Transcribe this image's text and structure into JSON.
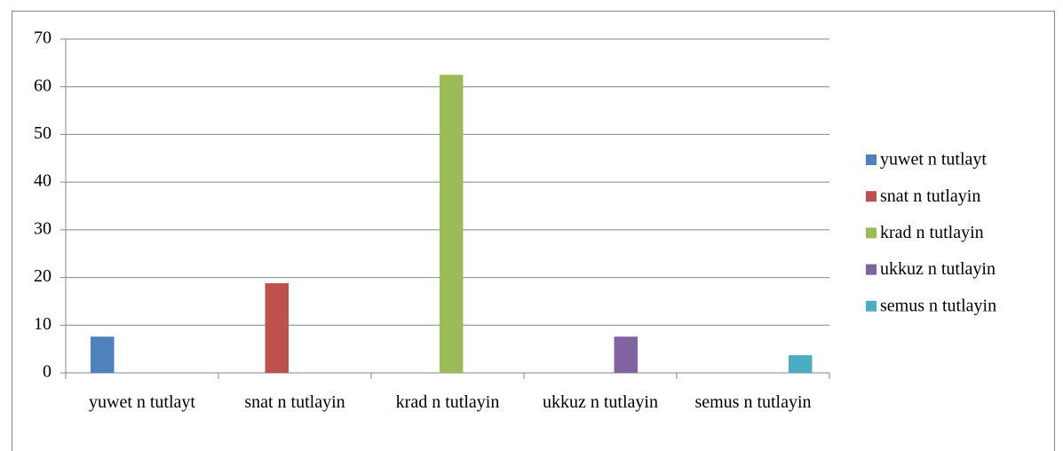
{
  "chart_data": {
    "type": "bar",
    "categories": [
      "yuwet n tutlayt",
      "snat n tutlayin",
      "krad n tutlayin",
      "ukkuz n tutlayin",
      "semus n tutlayin"
    ],
    "series": [
      {
        "name": "yuwet n tutlayt",
        "color": "#4f81bd",
        "values": [
          7.6,
          null,
          null,
          null,
          null
        ]
      },
      {
        "name": "snat n tutlayin",
        "color": "#c0504d",
        "values": [
          null,
          18.8,
          null,
          null,
          null
        ]
      },
      {
        "name": "krad n tutlayin",
        "color": "#9bbb59",
        "values": [
          null,
          null,
          62.5,
          null,
          null
        ]
      },
      {
        "name": "ukkuz n tutlayin",
        "color": "#8064a2",
        "values": [
          null,
          null,
          null,
          7.6,
          null
        ]
      },
      {
        "name": "semus n tutlayin",
        "color": "#4bacc6",
        "values": [
          null,
          null,
          null,
          null,
          3.7
        ]
      }
    ],
    "ylim": [
      0,
      70
    ],
    "yticks": [
      0,
      10,
      20,
      30,
      40,
      50,
      60,
      70
    ],
    "grid": true,
    "legend": "right"
  }
}
